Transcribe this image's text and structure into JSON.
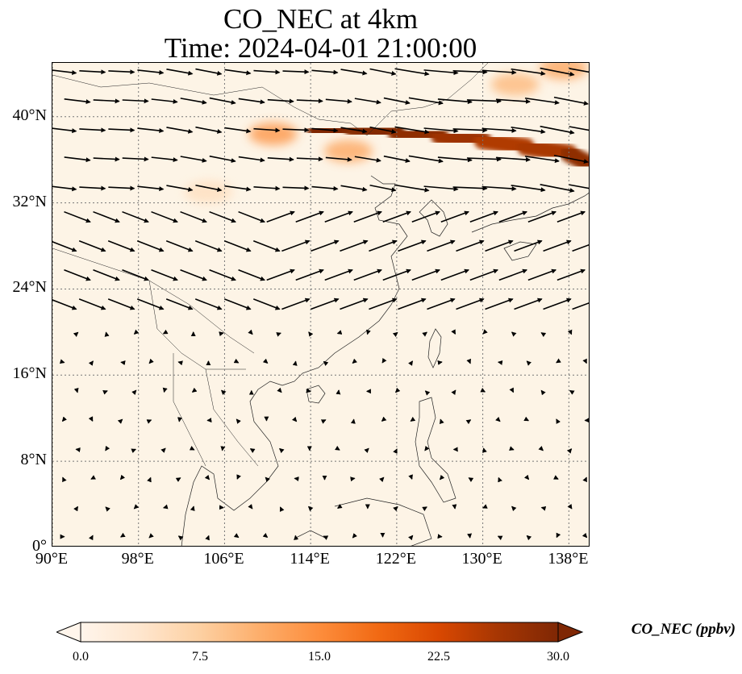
{
  "figure": {
    "title_line1": "CO_NEC at 4km",
    "title_line2": "Time: 2024-04-01 21:00:00"
  },
  "map": {
    "projection": "PlateCarree",
    "lon_range": [
      90,
      140
    ],
    "lat_range": [
      0,
      45
    ],
    "gridlines": "dotted",
    "coastlines": true,
    "borders": true,
    "background_color": "#fdf4e6",
    "x_ticks": [
      {
        "value": 90,
        "label": "90°E"
      },
      {
        "value": 98,
        "label": "98°E"
      },
      {
        "value": 106,
        "label": "106°E"
      },
      {
        "value": 114,
        "label": "114°E"
      },
      {
        "value": 122,
        "label": "122°E"
      },
      {
        "value": 130,
        "label": "130°E"
      },
      {
        "value": 138,
        "label": "138°E"
      }
    ],
    "y_ticks": [
      {
        "value": 0,
        "label": "0°"
      },
      {
        "value": 8,
        "label": "8°N"
      },
      {
        "value": 16,
        "label": "16°N"
      },
      {
        "value": 24,
        "label": "24°N"
      },
      {
        "value": 32,
        "label": "32°N"
      },
      {
        "value": 40,
        "label": "40°N"
      }
    ],
    "plume": {
      "description_color_high": "#8b0000",
      "band": [
        {
          "lon": 114.5,
          "lat": 38.6,
          "value": 30
        },
        {
          "lon": 118,
          "lat": 38.8,
          "value": 30
        },
        {
          "lon": 122,
          "lat": 38.5,
          "value": 29
        },
        {
          "lon": 126,
          "lat": 38.2,
          "value": 28
        },
        {
          "lon": 130,
          "lat": 37.8,
          "value": 26
        },
        {
          "lon": 134,
          "lat": 37.2,
          "value": 25
        },
        {
          "lon": 138,
          "lat": 36.6,
          "value": 27
        },
        {
          "lon": 139.5,
          "lat": 35.8,
          "value": 30
        }
      ],
      "secondary": [
        {
          "lon": 137.5,
          "lat": 44.5,
          "value": 12
        },
        {
          "lon": 133,
          "lat": 43.0,
          "value": 10
        },
        {
          "lon": 110.5,
          "lat": 38.4,
          "value": 14
        },
        {
          "lon": 104.5,
          "lat": 33.0,
          "value": 5
        },
        {
          "lon": 117.5,
          "lat": 36.8,
          "value": 12
        }
      ]
    },
    "wind": {
      "grid_lon": [
        91,
        93.7,
        96.4,
        99.1,
        101.8,
        104.5,
        107.2,
        109.9,
        112.6,
        115.3,
        118,
        120.7,
        123.4,
        126.1,
        128.8,
        131.5,
        134.2,
        136.9,
        139.6
      ],
      "grid_lat": [
        1,
        3.7,
        6.4,
        9.1,
        11.8,
        14.5,
        17.2,
        19.9,
        22.6,
        25.3,
        28,
        30.7,
        33.4,
        36.1,
        38.8,
        41.5,
        44.2
      ]
    }
  },
  "colorbar": {
    "label": "CO_NEC (ppbv)",
    "min": 0,
    "max": 30,
    "extend": "both",
    "cmap": [
      "#fff5eb",
      "#fee6ce",
      "#fdd0a2",
      "#fdae6b",
      "#fd8d3c",
      "#f16913",
      "#d94801",
      "#a63603",
      "#7f2704"
    ],
    "ticks": [
      {
        "value": 0,
        "label": "0.0"
      },
      {
        "value": 7.5,
        "label": "7.5"
      },
      {
        "value": 15,
        "label": "15.0"
      },
      {
        "value": 22.5,
        "label": "22.5"
      },
      {
        "value": 30,
        "label": "30.0"
      }
    ]
  }
}
